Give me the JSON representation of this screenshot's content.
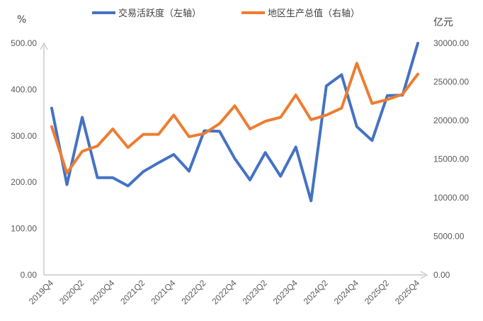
{
  "chart_data": {
    "type": "line",
    "title": "",
    "left_unit": "%",
    "right_unit": "亿元",
    "legend": [
      {
        "label": "交易活跃度（左轴）",
        "color": "#4472C4"
      },
      {
        "label": "地区生产总值（右轴）",
        "color": "#ED7D31"
      }
    ],
    "legend_position": "top",
    "grid": false,
    "x": [
      "2019Q4",
      "2020Q1",
      "2020Q2",
      "2020Q3",
      "2020Q4",
      "2021Q1",
      "2021Q2",
      "2021Q3",
      "2021Q4",
      "2022Q1",
      "2022Q2",
      "2022Q3",
      "2022Q4",
      "2023Q1",
      "2023Q2",
      "2023Q3",
      "2023Q4",
      "2024Q1",
      "2024Q2",
      "2024Q3",
      "2024Q4",
      "2025Q1",
      "2025Q2",
      "2025Q3",
      "2025Q4"
    ],
    "x_tick_labels": [
      "2019Q4",
      "2020Q2",
      "2020Q4",
      "2021Q2",
      "2021Q4",
      "2022Q2",
      "2022Q4",
      "2023Q2",
      "2023Q4",
      "2024Q2",
      "2024Q4",
      "2025Q2",
      "2025Q4"
    ],
    "y_left": {
      "ylim": [
        0,
        500
      ],
      "ticks": [
        "0.00",
        "100.00",
        "200.00",
        "300.00",
        "400.00",
        "500.00"
      ]
    },
    "y_right": {
      "ylim": [
        0,
        30000
      ],
      "ticks": [
        "0.00",
        "5000.00",
        "10000.00",
        "15000.00",
        "20000.00",
        "25000.00",
        "30000.00"
      ]
    },
    "series": [
      {
        "name": "交易活跃度（左轴）",
        "axis": "left",
        "color": "#4472C4",
        "values": [
          360,
          195,
          340,
          210,
          210,
          192,
          223,
          242,
          260,
          224,
          311,
          310,
          251,
          205,
          264,
          213,
          276,
          160,
          408,
          432,
          320,
          290,
          387,
          388,
          500
        ]
      },
      {
        "name": "地区生产总值（右轴）",
        "axis": "right",
        "color": "#ED7D31",
        "values": [
          19200,
          13200,
          16000,
          16700,
          18900,
          16500,
          18200,
          18200,
          20700,
          17900,
          18300,
          19600,
          21900,
          18900,
          19900,
          20400,
          23300,
          20100,
          20700,
          21600,
          27400,
          22200,
          22700,
          23400,
          26000
        ]
      }
    ]
  }
}
